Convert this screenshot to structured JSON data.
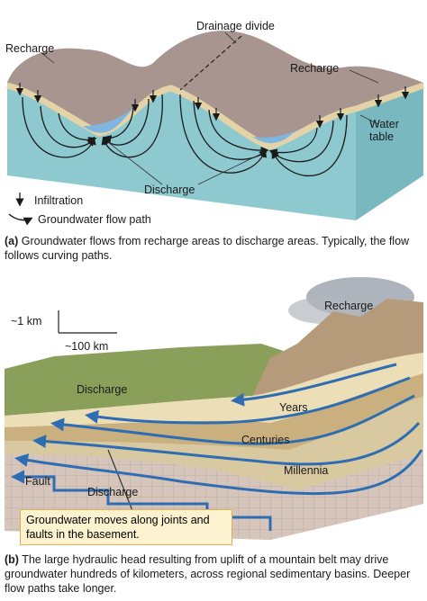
{
  "panel_a": {
    "labels": [
      "Drainage divide",
      "Recharge",
      "Recharge",
      "Water table",
      "Discharge"
    ],
    "legend": [
      "Infiltration",
      "Groundwater flow path"
    ],
    "caption": {
      "label": "(a)",
      "text": "Groundwater flows from recharge areas to discharge areas. Typically, the flow follows curving paths."
    }
  },
  "panel_b": {
    "scale": [
      "~1 km",
      "~100 km"
    ],
    "labels": [
      "Recharge",
      "Discharge",
      "Years",
      "Centuries",
      "Millennia",
      "Fault",
      "Discharge"
    ],
    "callout": "Groundwater moves along joints and faults in the basement.",
    "caption": {
      "label": "(b)",
      "text": "The large hydraulic head resulting from uplift of a mountain belt may drive groundwater hundreds of kilometers, across regional sedimentary basins. Deeper flow paths take longer."
    }
  }
}
